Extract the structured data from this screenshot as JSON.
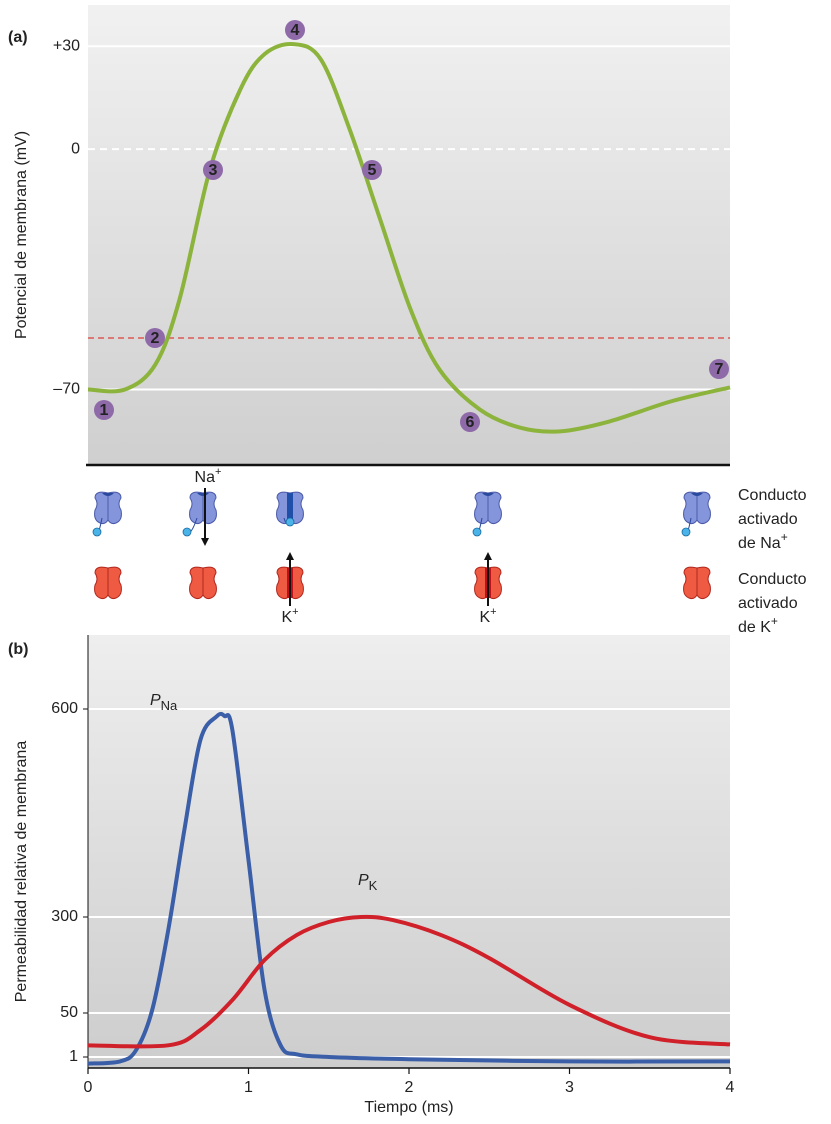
{
  "chart_data": [
    {
      "type": "line",
      "panel_label": "(a)",
      "ylabel": "Potencial de membrana (mV)",
      "xlim": [
        0,
        4
      ],
      "ylim": [
        -92,
        42
      ],
      "yticks": [
        {
          "value": 30,
          "label": "+30"
        },
        0,
        {
          "value": -70,
          "label": "–70"
        }
      ],
      "grid": true,
      "zero_line": "dashed",
      "threshold": -55,
      "threshold_color": "#e0403a",
      "series": [
        {
          "color": "#8cb43c",
          "x": [
            0,
            0.23,
            0.42,
            0.57,
            0.76,
            0.95,
            1.1,
            1.28,
            1.45,
            1.63,
            1.82,
            2.01,
            2.19,
            2.44,
            2.69,
            2.94,
            3.25,
            3.63,
            4.0
          ],
          "values": [
            -70,
            -70,
            -62.7,
            -43.8,
            -5.9,
            17.5,
            27.7,
            30.6,
            26.2,
            5.8,
            -20.4,
            -46.7,
            -64.2,
            -75.8,
            -81.1,
            -82.2,
            -79.3,
            -73.5,
            -69.4
          ]
        }
      ],
      "annotations": [
        "1",
        "2",
        "3",
        "4",
        "5",
        "6",
        "7"
      ]
    },
    {
      "type": "line",
      "panel_label": "(b)",
      "xlabel": "Tiempo (ms)",
      "ylabel": "Permeabilidad relativa de membrana",
      "xlim": [
        0,
        4
      ],
      "xticks": [
        0,
        1,
        2,
        3,
        4
      ],
      "ylim": [
        0,
        710
      ],
      "yticks": [
        1,
        50,
        300,
        600
      ],
      "grid": true,
      "series": [
        {
          "name": "P",
          "name_sub": "Na",
          "color": "#3a5ea8",
          "x": [
            0,
            0.2,
            0.3,
            0.4,
            0.5,
            0.6,
            0.7,
            0.8,
            0.85,
            0.9,
            1.0,
            1.1,
            1.2,
            1.3,
            1.5,
            2,
            3,
            4
          ],
          "values": [
            0.4,
            0.6,
            8.8,
            58,
            266,
            425,
            555,
            589,
            590,
            569,
            382,
            110,
            14,
            4,
            1,
            0.8,
            0.6,
            0.6
          ]
        },
        {
          "name": "P",
          "name_sub": "K",
          "color": "#d0202a",
          "x": [
            0,
            0.5,
            0.7,
            0.9,
            1.1,
            1.3,
            1.5,
            1.7,
            1.9,
            2.2,
            2.5,
            3,
            3.5,
            4
          ],
          "values": [
            14,
            14,
            31,
            84,
            188,
            253,
            287,
            300,
            292,
            253,
            193,
            71,
            23,
            15
          ]
        }
      ]
    }
  ],
  "channels": {
    "na_ion": {
      "text": "Na",
      "sup": "+"
    },
    "k_ion": {
      "text": "K",
      "sup": "+"
    },
    "na_row": [
      "Conducto",
      "activado",
      "de Na"
    ],
    "na_row_sup": "+",
    "k_row": [
      "Conducto",
      "activado",
      "de K"
    ],
    "k_row_sup": "+"
  }
}
